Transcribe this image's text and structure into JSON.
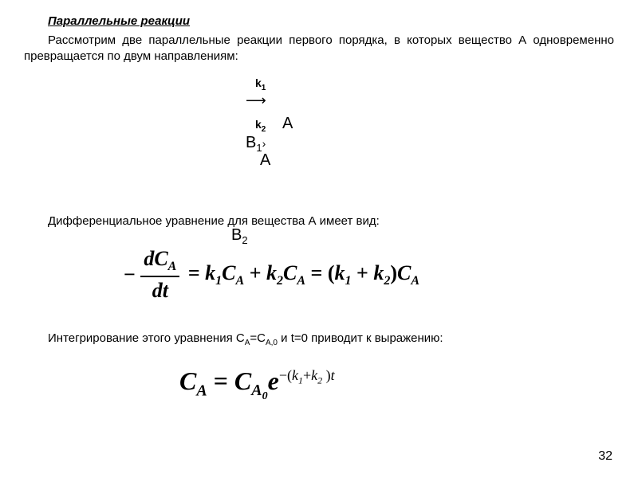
{
  "title": "Параллельные реакции",
  "para": "Рассмотрим  две параллельные реакции первого порядка, в которых вещество А одновременно превращается по двум направлениям:",
  "scheme": {
    "k1": "k",
    "k1_sub": "1",
    "arrow1": "⟶",
    "k2": "k",
    "k2_sub": "2",
    "a1": "A",
    "arrow2": "›",
    "b1": "B",
    "b1_sub": "1",
    "a2": "A",
    "b2": "B",
    "b2_sub": "2"
  },
  "mid_text": "Дифференциальное уравнение для вещества А имеет вид:",
  "eq1": {
    "minus": "−",
    "num_d": "dC",
    "num_sub": "A",
    "den": "dt",
    "eq": "=",
    "k1": "k",
    "k1_sub": "1",
    "c1": "C",
    "c1_sub": "A",
    "plus1": "+",
    "k2": "k",
    "k2_sub": "2",
    "c2": "C",
    "c2_sub": "A",
    "eq2": "=",
    "lp": "(",
    "k3": "k",
    "k3_sub": "1",
    "plus2": "+",
    "k4": "k",
    "k4_sub": "2",
    "rp": ")",
    "c3": "C",
    "c3_sub": "A"
  },
  "int_text_1": "Интегрирование этого уравнения C",
  "int_sub1": "A",
  "int_text_2": "=C",
  "int_sub2": "A,0",
  "int_text_3": " и t=0 приводит к выражению:",
  "eq2": {
    "c1": "C",
    "c1_sub": "A",
    "eq": "=",
    "c2": "C",
    "c2_sub": "A",
    "c2_subsub": "0",
    "e": "e",
    "exp_minus": "−(",
    "exp_k1": "k",
    "exp_k1_sub": "1",
    "exp_plus": "+",
    "exp_k2": "k",
    "exp_k2_sub": "2",
    "exp_rp": " )",
    "exp_t": "t"
  },
  "page_num": "32",
  "colors": {
    "bg": "#ffffff",
    "text": "#000000"
  }
}
